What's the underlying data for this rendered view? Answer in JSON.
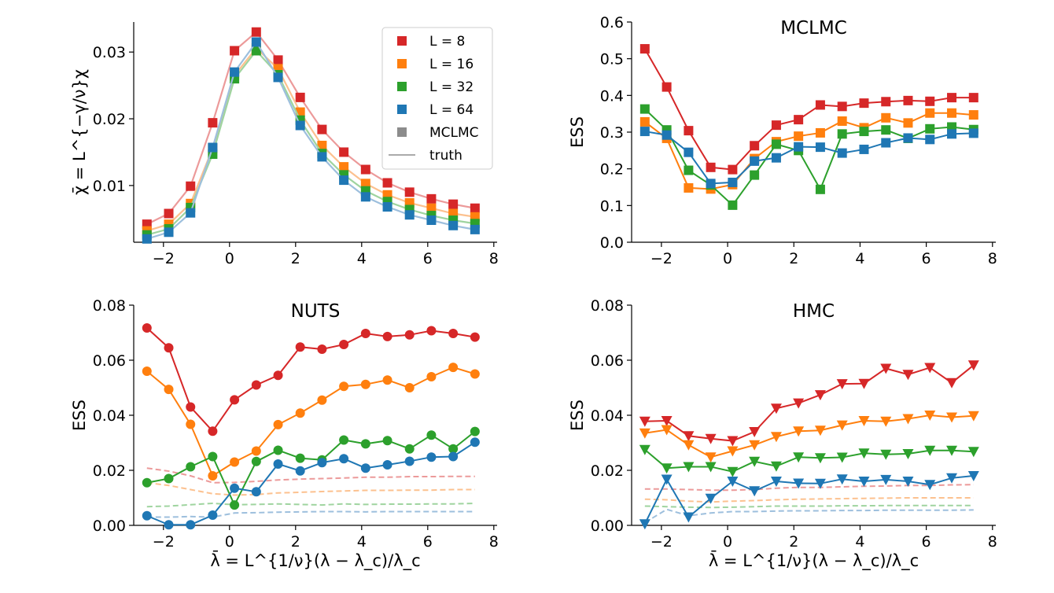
{
  "colors": {
    "L8": "#d62728",
    "L16": "#ff7f0e",
    "L32": "#2ca02c",
    "L64": "#1f77b4",
    "gray": "#8c8c8c"
  },
  "xlabel": "λ̄ = L^{1/ν}(λ − λ_c)/λ_c",
  "chart_data": [
    {
      "type": "scatter",
      "title": "",
      "ylabel": "χ̄ = L^{−γ/ν}χ",
      "xlim": [
        -2.9,
        8.1
      ],
      "ylim": [
        0.0015,
        0.0345
      ],
      "xticks": [
        "−2",
        "0",
        "2",
        "4",
        "6",
        "8"
      ],
      "yticks": [
        "0.01",
        "0.02",
        "0.03"
      ],
      "x": [
        -2.5,
        -1.84,
        -1.18,
        -0.51,
        0.15,
        0.81,
        1.47,
        2.14,
        2.8,
        3.46,
        4.12,
        4.78,
        5.45,
        6.11,
        6.77,
        7.43
      ],
      "legend": [
        "L = 8",
        "L = 16",
        "L = 32",
        "L = 64",
        "MCLMC",
        "truth"
      ],
      "series": [
        {
          "name": "L = 8",
          "values": [
            0.0042,
            0.0058,
            0.0099,
            0.0194,
            0.0302,
            0.033,
            0.0288,
            0.0232,
            0.0184,
            0.015,
            0.0124,
            0.0104,
            0.009,
            0.008,
            0.0072,
            0.0066
          ]
        },
        {
          "name": "L = 16",
          "values": [
            0.0032,
            0.0042,
            0.0073,
            0.0156,
            0.0265,
            0.0306,
            0.0275,
            0.021,
            0.016,
            0.0128,
            0.0103,
            0.0086,
            0.0074,
            0.0066,
            0.0058,
            0.0053
          ]
        },
        {
          "name": "L = 32",
          "values": [
            0.0026,
            0.0035,
            0.0067,
            0.0147,
            0.026,
            0.0302,
            0.0266,
            0.0198,
            0.0148,
            0.0116,
            0.0092,
            0.0076,
            0.0064,
            0.0055,
            0.0048,
            0.0043
          ]
        },
        {
          "name": "L = 64",
          "values": [
            0.002,
            0.003,
            0.0059,
            0.0157,
            0.027,
            0.0315,
            0.0262,
            0.019,
            0.0143,
            0.0108,
            0.0083,
            0.0068,
            0.0056,
            0.0048,
            0.004,
            0.0034
          ]
        }
      ]
    },
    {
      "type": "line",
      "title": "MCLMC",
      "ylabel": "ESS",
      "xlim": [
        -2.9,
        8.1
      ],
      "ylim": [
        0,
        0.6
      ],
      "xticks": [
        "−2",
        "0",
        "2",
        "4",
        "6",
        "8"
      ],
      "yticks": [
        "0.0",
        "0.1",
        "0.2",
        "0.3",
        "0.4",
        "0.5",
        "0.6"
      ],
      "x": [
        -2.5,
        -1.84,
        -1.18,
        -0.51,
        0.15,
        0.81,
        1.47,
        2.14,
        2.8,
        3.46,
        4.12,
        4.78,
        5.45,
        6.11,
        6.77,
        7.43
      ],
      "series": [
        {
          "name": "L = 8",
          "values": [
            0.527,
            0.423,
            0.304,
            0.204,
            0.198,
            0.263,
            0.319,
            0.334,
            0.374,
            0.37,
            0.379,
            0.383,
            0.386,
            0.384,
            0.394,
            0.394
          ]
        },
        {
          "name": "L = 16",
          "values": [
            0.328,
            0.283,
            0.148,
            0.145,
            0.157,
            0.228,
            0.274,
            0.289,
            0.298,
            0.33,
            0.312,
            0.339,
            0.325,
            0.352,
            0.352,
            0.347
          ]
        },
        {
          "name": "L = 32",
          "values": [
            0.363,
            0.306,
            0.196,
            0.156,
            0.101,
            0.183,
            0.267,
            0.25,
            0.144,
            0.295,
            0.302,
            0.306,
            0.283,
            0.309,
            0.314,
            0.307
          ]
        },
        {
          "name": "L = 64",
          "values": [
            0.302,
            0.292,
            0.245,
            0.16,
            0.163,
            0.221,
            0.23,
            0.26,
            0.259,
            0.243,
            0.253,
            0.271,
            0.284,
            0.28,
            0.295,
            0.297
          ]
        }
      ]
    },
    {
      "type": "line",
      "title": "NUTS",
      "ylabel": "ESS",
      "xlim": [
        -2.9,
        8.1
      ],
      "ylim": [
        0,
        0.08
      ],
      "xticks": [
        "−2",
        "0",
        "2",
        "4",
        "6",
        "8"
      ],
      "yticks": [
        "0.00",
        "0.02",
        "0.04",
        "0.06",
        "0.08"
      ],
      "x": [
        -2.5,
        -1.84,
        -1.18,
        -0.51,
        0.15,
        0.81,
        1.47,
        2.14,
        2.8,
        3.46,
        4.12,
        4.78,
        5.45,
        6.11,
        6.77,
        7.43
      ],
      "marker": "circle",
      "series": [
        {
          "name": "L = 8",
          "values": [
            0.0717,
            0.0645,
            0.043,
            0.0342,
            0.0456,
            0.051,
            0.0545,
            0.0648,
            0.064,
            0.0657,
            0.0697,
            0.0686,
            0.0692,
            0.0707,
            0.0697,
            0.0684
          ]
        },
        {
          "name": "L = 16",
          "values": [
            0.056,
            0.0494,
            0.0367,
            0.018,
            0.023,
            0.027,
            0.0366,
            0.0408,
            0.0455,
            0.0505,
            0.0512,
            0.0528,
            0.05,
            0.054,
            0.0574,
            0.055
          ]
        },
        {
          "name": "L = 32",
          "values": [
            0.0155,
            0.017,
            0.0213,
            0.025,
            0.0074,
            0.0232,
            0.0273,
            0.0244,
            0.0238,
            0.031,
            0.0296,
            0.0308,
            0.0278,
            0.0328,
            0.0278,
            0.0341
          ]
        },
        {
          "name": "L = 64",
          "values": [
            0.0035,
            0.0002,
            0.0002,
            0.0037,
            0.0135,
            0.0122,
            0.0223,
            0.0198,
            0.0228,
            0.0242,
            0.0208,
            0.022,
            0.0233,
            0.0248,
            0.025,
            0.0302
          ]
        }
      ],
      "reference": [
        {
          "name": "L = 8",
          "values": [
            0.0208,
            0.0197,
            0.018,
            0.0155,
            0.0156,
            0.016,
            0.0165,
            0.0168,
            0.017,
            0.0172,
            0.0175,
            0.0175,
            0.0177,
            0.0177,
            0.0178,
            0.0178
          ]
        },
        {
          "name": "L = 16",
          "values": [
            0.0155,
            0.0145,
            0.013,
            0.0115,
            0.011,
            0.0112,
            0.0118,
            0.012,
            0.0123,
            0.0125,
            0.0127,
            0.0127,
            0.0128,
            0.0128,
            0.013,
            0.013
          ]
        },
        {
          "name": "L = 32",
          "values": [
            0.0068,
            0.007,
            0.0075,
            0.008,
            0.0075,
            0.0076,
            0.0078,
            0.0076,
            0.0074,
            0.0078,
            0.0076,
            0.0077,
            0.0077,
            0.0078,
            0.0078,
            0.008
          ]
        },
        {
          "name": "L = 64",
          "values": [
            0.003,
            0.003,
            0.0032,
            0.003,
            0.0045,
            0.0046,
            0.0048,
            0.0049,
            0.005,
            0.005,
            0.0049,
            0.005,
            0.005,
            0.005,
            0.005,
            0.005
          ]
        }
      ]
    },
    {
      "type": "line",
      "title": "HMC",
      "ylabel": "ESS",
      "xlim": [
        -2.9,
        8.1
      ],
      "ylim": [
        0,
        0.08
      ],
      "xticks": [
        "−2",
        "0",
        "2",
        "4",
        "6",
        "8"
      ],
      "yticks": [
        "0.00",
        "0.02",
        "0.04",
        "0.06",
        "0.08"
      ],
      "x": [
        -2.5,
        -1.84,
        -1.18,
        -0.51,
        0.15,
        0.81,
        1.47,
        2.14,
        2.8,
        3.46,
        4.12,
        4.78,
        5.45,
        6.11,
        6.77,
        7.43
      ],
      "marker": "triangle-down",
      "series": [
        {
          "name": "L = 8",
          "values": [
            0.0378,
            0.038,
            0.0325,
            0.0315,
            0.0307,
            0.034,
            0.0425,
            0.0444,
            0.0474,
            0.0514,
            0.0515,
            0.057,
            0.0548,
            0.0573,
            0.0518,
            0.0582
          ]
        },
        {
          "name": "L = 16",
          "values": [
            0.0335,
            0.0347,
            0.0292,
            0.0248,
            0.027,
            0.0292,
            0.0322,
            0.0342,
            0.0345,
            0.0364,
            0.038,
            0.0378,
            0.0387,
            0.04,
            0.0393,
            0.0398
          ]
        },
        {
          "name": "L = 32",
          "values": [
            0.0275,
            0.0208,
            0.0213,
            0.0213,
            0.0195,
            0.0232,
            0.0215,
            0.0248,
            0.0245,
            0.0247,
            0.0262,
            0.0258,
            0.026,
            0.0272,
            0.0272,
            0.0268
          ]
        },
        {
          "name": "L = 64",
          "values": [
            0.0005,
            0.0167,
            0.003,
            0.0098,
            0.016,
            0.0125,
            0.016,
            0.0153,
            0.0152,
            0.0168,
            0.016,
            0.0166,
            0.016,
            0.0148,
            0.0172,
            0.018
          ]
        }
      ],
      "reference": [
        {
          "name": "L = 8",
          "values": [
            0.0132,
            0.0132,
            0.013,
            0.0128,
            0.0128,
            0.013,
            0.0135,
            0.0138,
            0.0138,
            0.014,
            0.0142,
            0.0143,
            0.0145,
            0.0145,
            0.0147,
            0.0148
          ]
        },
        {
          "name": "L = 16",
          "values": [
            0.0095,
            0.0093,
            0.0088,
            0.0085,
            0.0088,
            0.009,
            0.0093,
            0.0095,
            0.0096,
            0.0097,
            0.0098,
            0.0099,
            0.01,
            0.01,
            0.01,
            0.01
          ]
        },
        {
          "name": "L = 32",
          "values": [
            0.007,
            0.0068,
            0.0066,
            0.0065,
            0.0066,
            0.0068,
            0.007,
            0.007,
            0.007,
            0.0071,
            0.0071,
            0.0072,
            0.0072,
            0.0072,
            0.0072,
            0.0072
          ]
        },
        {
          "name": "L = 64",
          "values": [
            0.001,
            0.0058,
            0.0035,
            0.0045,
            0.005,
            0.005,
            0.0052,
            0.0053,
            0.0053,
            0.0054,
            0.0054,
            0.0055,
            0.0055,
            0.0055,
            0.0055,
            0.0056
          ]
        }
      ]
    }
  ]
}
